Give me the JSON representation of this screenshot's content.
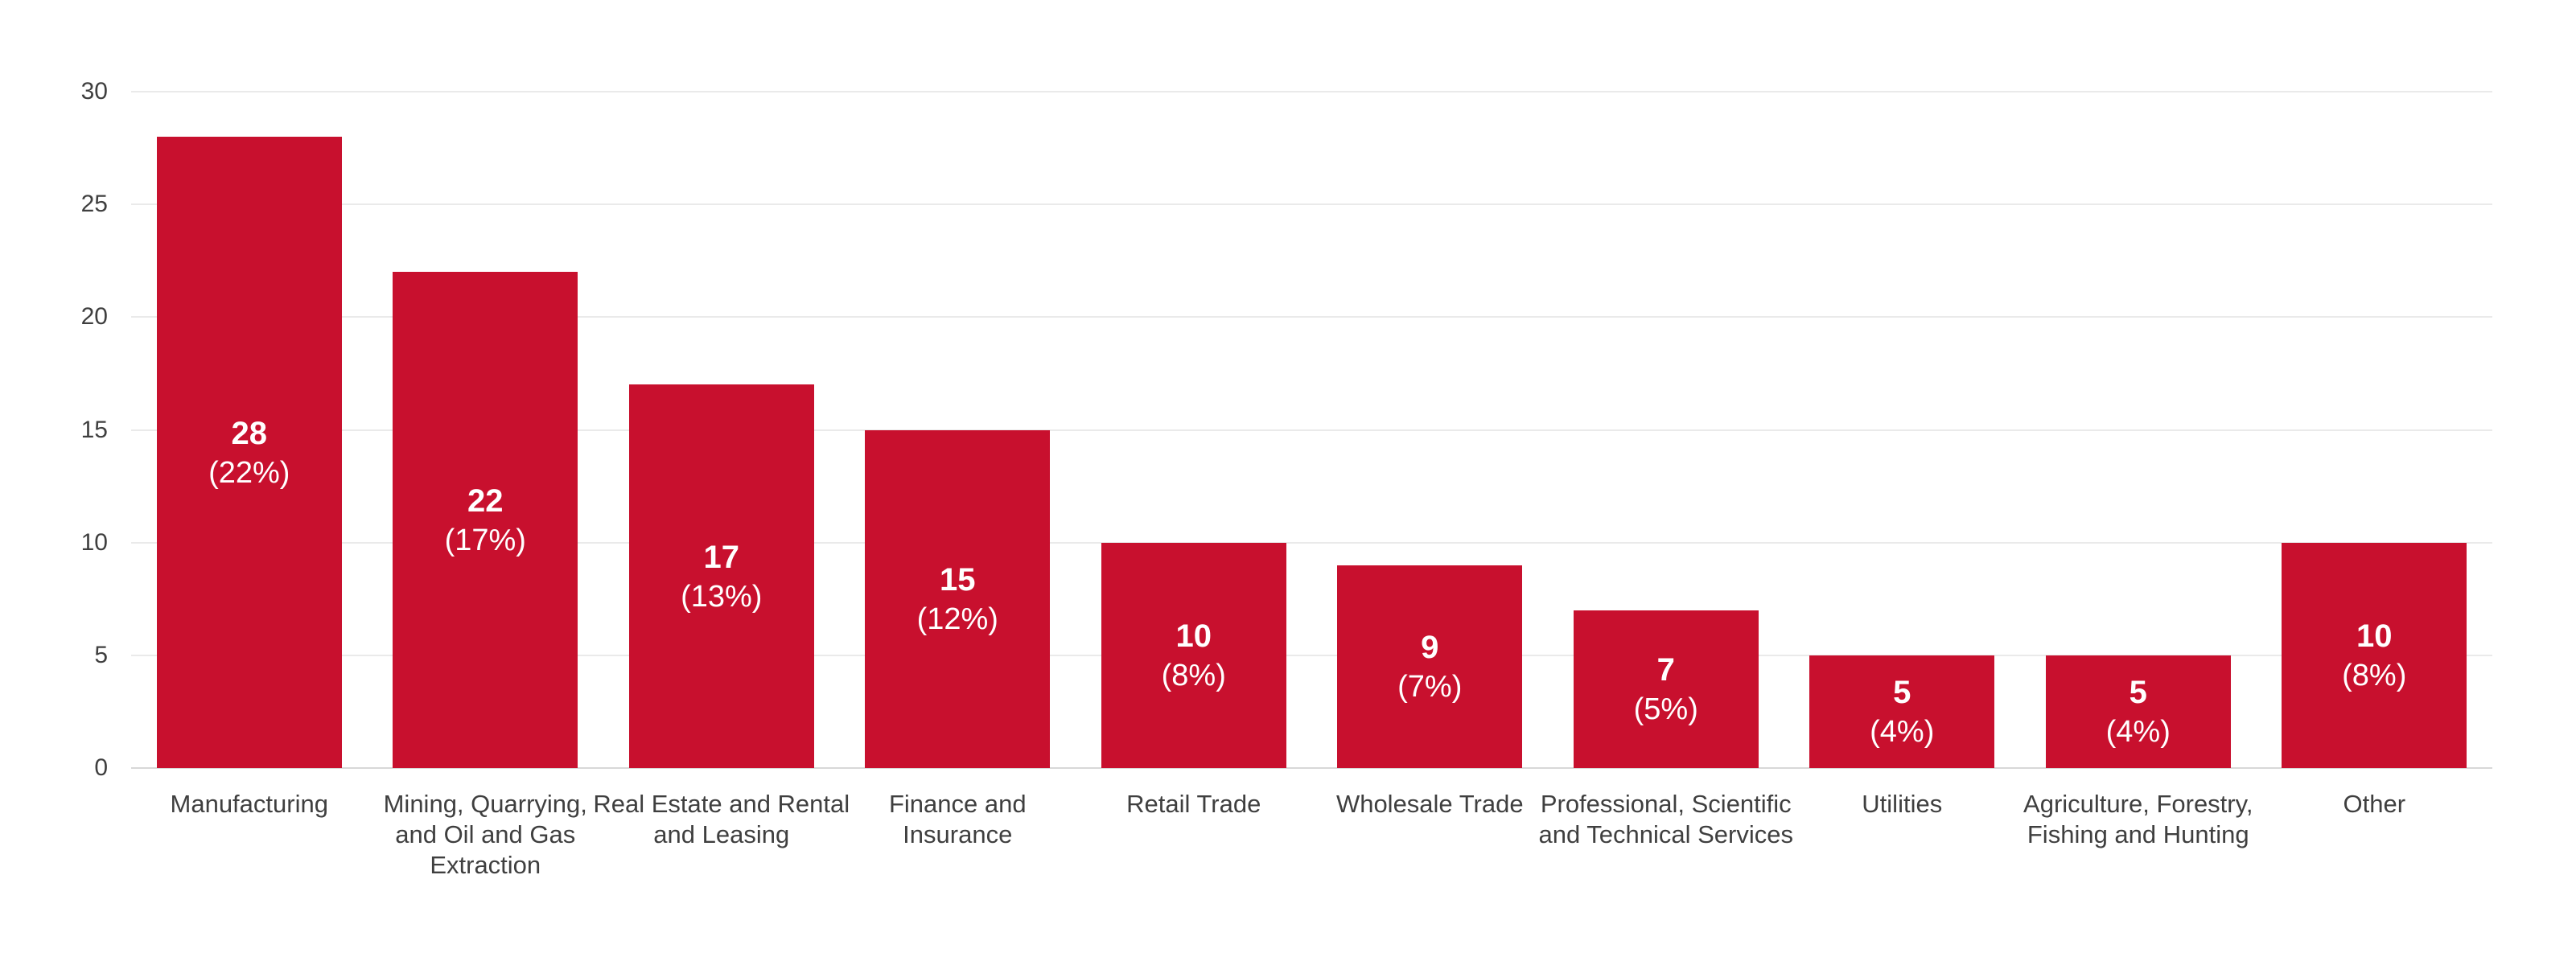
{
  "chart_data": {
    "type": "bar",
    "title": "",
    "xlabel": "",
    "ylabel": "",
    "ylim": [
      0,
      30
    ],
    "y_ticks": [
      0,
      5,
      10,
      15,
      20,
      25,
      30
    ],
    "grid": true,
    "legend": "none",
    "bar_color": "#C8102E",
    "value_label_color": "#FFFFFF",
    "axis_text_color": "#3F3F3F",
    "gridline_color": "#EAEAEA",
    "baseline_color": "#D8D8D8",
    "categories": [
      "Manufacturing",
      "Mining, Quarrying, and Oil and Gas Extraction",
      "Real Estate and Rental and Leasing",
      "Finance and Insurance",
      "Retail Trade",
      "Wholesale Trade",
      "Professional, Scientific and Technical Services",
      "Utilities",
      "Agriculture, Forestry, Fishing and Hunting",
      "Other"
    ],
    "category_label_lines": [
      [
        "Manufacturing"
      ],
      [
        "Mining, Quarrying,",
        "and Oil and Gas",
        "Extraction"
      ],
      [
        "Real Estate and Rental",
        "and Leasing"
      ],
      [
        "Finance and",
        "Insurance"
      ],
      [
        "Retail Trade"
      ],
      [
        "Wholesale Trade"
      ],
      [
        "Professional, Scientific",
        "and Technical Services"
      ],
      [
        "Utilities"
      ],
      [
        "Agriculture, Forestry,",
        "Fishing and Hunting"
      ],
      [
        "Other"
      ]
    ],
    "values": [
      28,
      22,
      17,
      15,
      10,
      9,
      7,
      5,
      5,
      10
    ],
    "percents": [
      22,
      17,
      13,
      12,
      8,
      7,
      5,
      4,
      4,
      8
    ],
    "value_labels": [
      "28 (22%)",
      "22 (17%)",
      "17 (13%)",
      "15 (12%)",
      "10 (8%)",
      "9 (7%)",
      "7 (5%)",
      "5 (4%)",
      "5 (4%)",
      "10 (8%)"
    ]
  }
}
